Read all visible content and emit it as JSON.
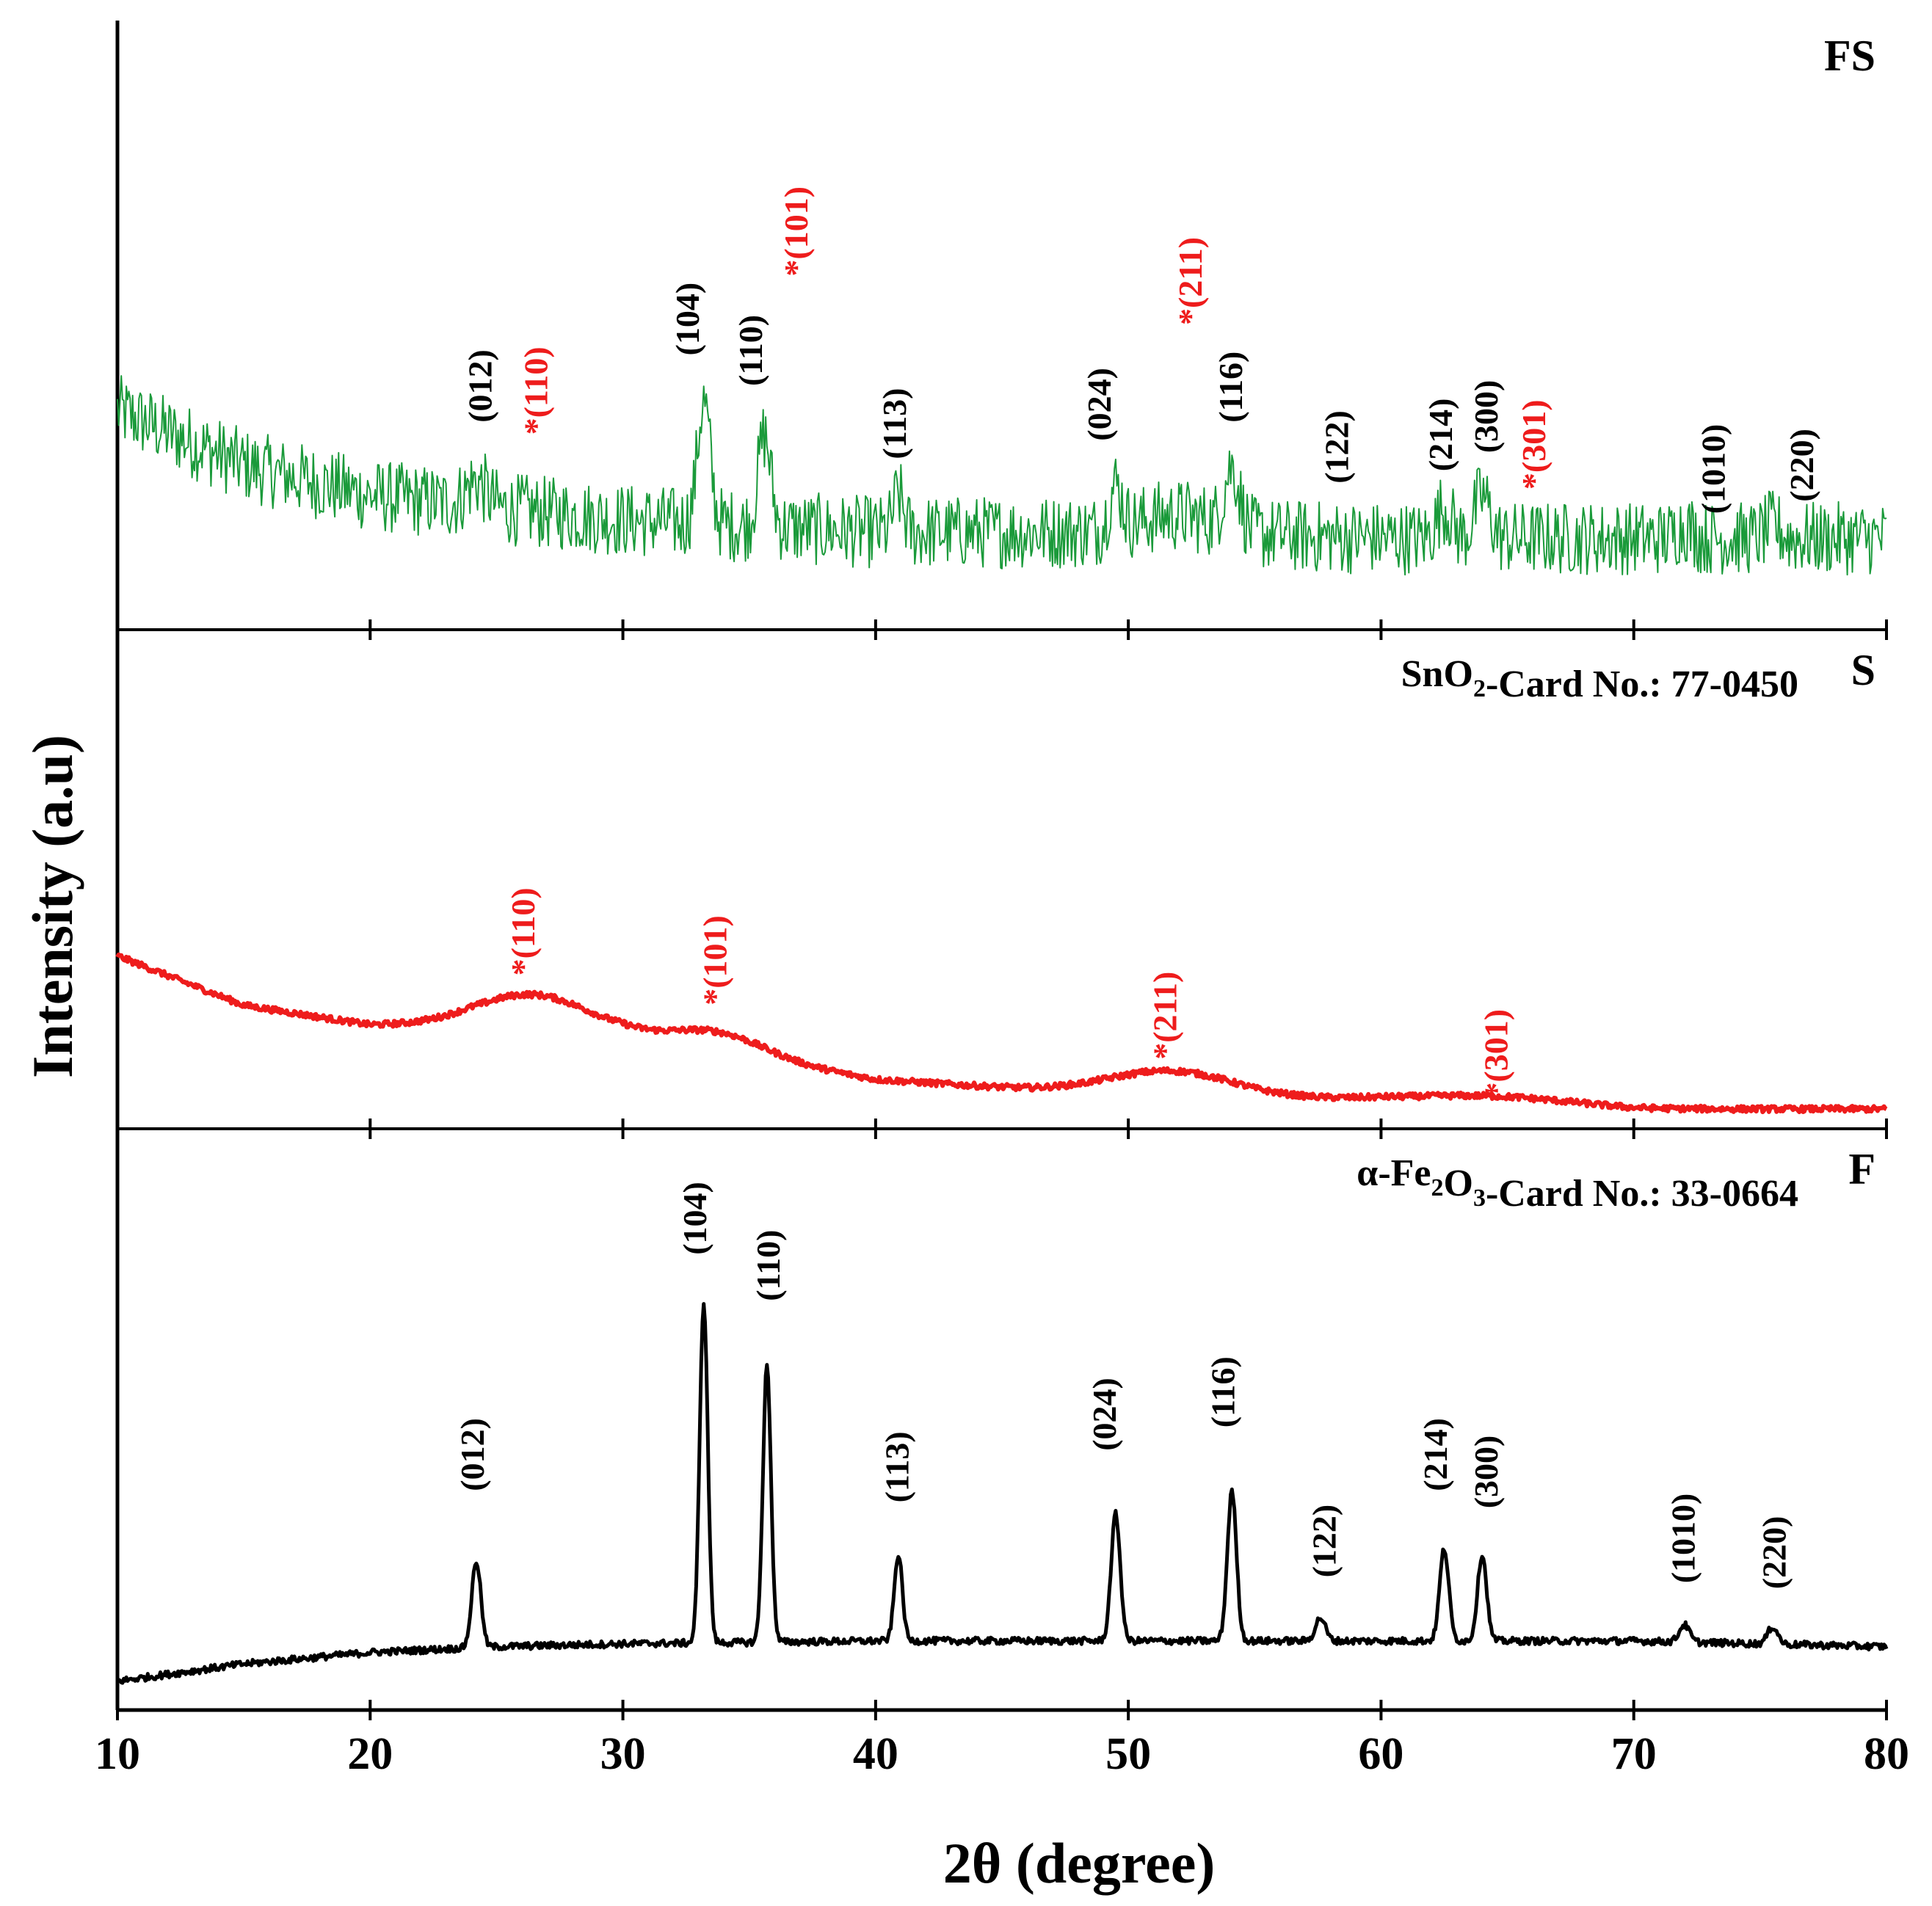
{
  "chart_data": {
    "type": "line",
    "title": "",
    "xlabel": "2θ (degree)",
    "ylabel": "Intensity (a.u)",
    "xlim": [
      10,
      80
    ],
    "xticks": [
      10,
      20,
      30,
      40,
      50,
      60,
      70,
      80
    ],
    "xtick_labels": [
      "10",
      "20",
      "30",
      "40",
      "50",
      "60",
      "70",
      "80"
    ],
    "colors": {
      "FS": "#1a9a3a",
      "S": "#ee1c1c",
      "F": "#000000",
      "fe_label": "#000000",
      "sn_label": "#ee1c1c"
    },
    "panels": [
      {
        "name": "FS",
        "ylim": [
          0,
          100
        ],
        "card": null,
        "line_width": 2,
        "noise": 6,
        "baseline": [
          [
            10,
            36
          ],
          [
            15,
            27
          ],
          [
            20,
            22
          ],
          [
            30,
            18
          ],
          [
            40,
            16
          ],
          [
            50,
            16
          ],
          [
            60,
            15
          ],
          [
            70,
            15
          ],
          [
            80,
            15
          ]
        ],
        "peaks": [
          {
            "x": 24.2,
            "h": 4,
            "w": 0.4
          },
          {
            "x": 33.2,
            "h": 20,
            "w": 0.25
          },
          {
            "x": 35.6,
            "h": 15,
            "w": 0.25
          },
          {
            "x": 40.9,
            "h": 6,
            "w": 0.2
          },
          {
            "x": 49.5,
            "h": 7,
            "w": 0.25
          },
          {
            "x": 52.0,
            "h": 3,
            "w": 1.5
          },
          {
            "x": 54.1,
            "h": 10,
            "w": 0.3
          },
          {
            "x": 62.5,
            "h": 5,
            "w": 0.3
          },
          {
            "x": 64.0,
            "h": 7,
            "w": 0.3
          },
          {
            "x": 72.0,
            "h": 2,
            "w": 0.3
          },
          {
            "x": 75.5,
            "h": 2,
            "w": 0.3
          }
        ],
        "labels": [
          {
            "x": 24.8,
            "y": 34,
            "text": "(012)",
            "color": "fe_label",
            "star": false
          },
          {
            "x": 27.0,
            "y": 32,
            "text": "(110)",
            "color": "sn_label",
            "star": true
          },
          {
            "x": 33.0,
            "y": 45,
            "text": "(104)",
            "color": "fe_label",
            "star": false
          },
          {
            "x": 35.5,
            "y": 40,
            "text": "(110)",
            "color": "fe_label",
            "star": false
          },
          {
            "x": 37.3,
            "y": 58,
            "text": "(101)",
            "color": "sn_label",
            "star": true
          },
          {
            "x": 41.2,
            "y": 28,
            "text": "(113)",
            "color": "fe_label",
            "star": false
          },
          {
            "x": 49.3,
            "y": 31,
            "text": "(024)",
            "color": "fe_label",
            "star": false
          },
          {
            "x": 52.9,
            "y": 50,
            "text": "(211)",
            "color": "sn_label",
            "star": true
          },
          {
            "x": 54.5,
            "y": 34,
            "text": "(116)",
            "color": "fe_label",
            "star": false
          },
          {
            "x": 58.7,
            "y": 24,
            "text": "(122)",
            "color": "fe_label",
            "star": false
          },
          {
            "x": 62.8,
            "y": 26,
            "text": "(214)",
            "color": "fe_label",
            "star": false
          },
          {
            "x": 64.6,
            "y": 29,
            "text": "(300)",
            "color": "fe_label",
            "star": false
          },
          {
            "x": 66.5,
            "y": 23,
            "text": "(301)",
            "color": "sn_label",
            "star": true
          },
          {
            "x": 73.6,
            "y": 19,
            "text": "(1010)",
            "color": "fe_label",
            "star": false
          },
          {
            "x": 77.1,
            "y": 21,
            "text": "(220)",
            "color": "fe_label",
            "star": false
          }
        ]
      },
      {
        "name": "S",
        "ylim": [
          0,
          100
        ],
        "card": "SnO₂-Card No.: 77-0450",
        "line_width": 6,
        "noise": 0.6,
        "baseline": [
          [
            10,
            35
          ],
          [
            15,
            25
          ],
          [
            20,
            21
          ],
          [
            24,
            21
          ],
          [
            30,
            19
          ],
          [
            40,
            10
          ],
          [
            46,
            8
          ],
          [
            55,
            6
          ],
          [
            60,
            6
          ],
          [
            70,
            4
          ],
          [
            80,
            4
          ]
        ],
        "peaks": [
          {
            "x": 26.5,
            "h": 7,
            "w": 2.2
          },
          {
            "x": 33.8,
            "h": 4,
            "w": 1.8
          },
          {
            "x": 51.8,
            "h": 5,
            "w": 2.5
          },
          {
            "x": 64.6,
            "h": 1.5,
            "w": 3.0
          }
        ],
        "labels": [
          {
            "x": 26.5,
            "y": 31,
            "text": "(110)",
            "color": "sn_label",
            "star": true
          },
          {
            "x": 34.1,
            "y": 25,
            "text": "(101)",
            "color": "sn_label",
            "star": true
          },
          {
            "x": 51.9,
            "y": 14,
            "text": "(211)",
            "color": "sn_label",
            "star": true
          },
          {
            "x": 65.0,
            "y": 6,
            "text": "(301)",
            "color": "sn_label",
            "star": true
          }
        ]
      },
      {
        "name": "F",
        "ylim": [
          0,
          100
        ],
        "card": "α-Fe₂O₃-Card No.: 33-0664",
        "line_width": 5,
        "noise": 0.6,
        "baseline": [
          [
            10,
            5
          ],
          [
            15,
            8
          ],
          [
            20,
            10
          ],
          [
            25,
            11
          ],
          [
            30,
            11.5
          ],
          [
            40,
            12
          ],
          [
            50,
            12
          ],
          [
            60,
            12
          ],
          [
            70,
            12
          ],
          [
            80,
            11
          ]
        ],
        "peaks": [
          {
            "x": 24.2,
            "h": 15,
            "w": 0.18
          },
          {
            "x": 33.2,
            "h": 59,
            "w": 0.16
          },
          {
            "x": 35.7,
            "h": 48,
            "w": 0.16
          },
          {
            "x": 40.9,
            "h": 15,
            "w": 0.16
          },
          {
            "x": 49.5,
            "h": 22,
            "w": 0.18
          },
          {
            "x": 54.1,
            "h": 26,
            "w": 0.18
          },
          {
            "x": 57.6,
            "h": 4,
            "w": 0.2
          },
          {
            "x": 62.5,
            "h": 16,
            "w": 0.18
          },
          {
            "x": 64.0,
            "h": 15,
            "w": 0.18
          },
          {
            "x": 72.0,
            "h": 3,
            "w": 0.2
          },
          {
            "x": 75.5,
            "h": 3,
            "w": 0.2
          }
        ],
        "labels": [
          {
            "x": 24.5,
            "y": 38,
            "text": "(012)",
            "color": "fe_label",
            "star": false
          },
          {
            "x": 33.3,
            "y": 79,
            "text": "(104)",
            "color": "fe_label",
            "star": false
          },
          {
            "x": 36.2,
            "y": 71,
            "text": "(110)",
            "color": "fe_label",
            "star": false
          },
          {
            "x": 41.3,
            "y": 36,
            "text": "(113)",
            "color": "fe_label",
            "star": false
          },
          {
            "x": 49.5,
            "y": 45,
            "text": "(024)",
            "color": "fe_label",
            "star": false
          },
          {
            "x": 54.2,
            "y": 49,
            "text": "(116)",
            "color": "fe_label",
            "star": false
          },
          {
            "x": 58.2,
            "y": 23,
            "text": "(122)",
            "color": "fe_label",
            "star": false
          },
          {
            "x": 62.6,
            "y": 38,
            "text": "(214)",
            "color": "fe_label",
            "star": false
          },
          {
            "x": 64.6,
            "y": 35,
            "text": "(300)",
            "color": "fe_label",
            "star": false
          },
          {
            "x": 72.4,
            "y": 22,
            "text": "(1010)",
            "color": "fe_label",
            "star": false
          },
          {
            "x": 76.0,
            "y": 21,
            "text": "(220)",
            "color": "fe_label",
            "star": false
          }
        ]
      }
    ]
  }
}
